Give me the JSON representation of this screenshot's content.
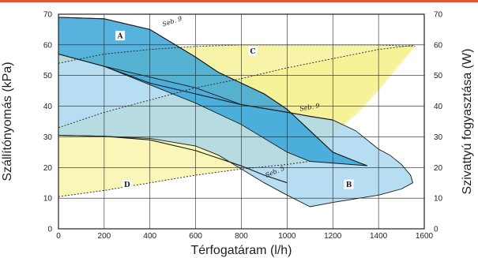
{
  "chart_data": {
    "type": "area",
    "xlabel": "Térfogatáram (l/h)",
    "ylabel": "Szállítónyomás (kPa)",
    "y2label": "Szivattyú fogyasztása (W)",
    "xlim": [
      0,
      1600
    ],
    "ylim": [
      0,
      70
    ],
    "y2lim": [
      0,
      70
    ],
    "x_ticks": [
      "0",
      "200",
      "400",
      "600",
      "800",
      "1000",
      "1200",
      "1400",
      "1600"
    ],
    "y_ticks": [
      "0",
      "10",
      "20",
      "30",
      "40",
      "50",
      "60",
      "70"
    ],
    "y2_ticks": [
      "0",
      "10",
      "20",
      "30",
      "40",
      "50",
      "60",
      "70"
    ],
    "grid": true,
    "colors": {
      "A": "#3aa6d8",
      "B": "#9fd2ee",
      "C": "#f4f08c",
      "D": "#f7f3a0",
      "frame": "#222222",
      "accent_bar": "#e8542e"
    },
    "regions": [
      {
        "name": "A",
        "x": [
          0,
          200,
          400,
          600,
          700,
          800,
          900,
          1000,
          1100,
          1200,
          1300,
          1350,
          1100,
          1000,
          800,
          600,
          400,
          200,
          0
        ],
        "y": [
          69,
          68.5,
          65,
          56,
          51,
          47.5,
          44,
          39,
          32,
          25,
          22,
          20.6,
          22,
          25,
          34,
          41,
          47,
          53,
          57
        ]
      },
      {
        "name": "B",
        "x": [
          0,
          200,
          600,
          800,
          1000,
          1100,
          1200,
          1300,
          1400,
          1450,
          1500,
          1540,
          1550,
          1500,
          1400,
          1300,
          1200,
          1100,
          1000,
          900,
          800,
          700,
          600,
          400,
          200,
          0
        ],
        "y": [
          57,
          53,
          46,
          40.5,
          38,
          36.7,
          35.5,
          32,
          26,
          24,
          21,
          17.5,
          15,
          13,
          11,
          9.8,
          8.6,
          7.2,
          11,
          15,
          19.5,
          24,
          27,
          29.5,
          30.2,
          30.5
        ]
      },
      {
        "name": "C",
        "x": [
          0,
          200,
          400,
          600,
          800,
          1000,
          1200,
          1400,
          1560,
          1400,
          1300,
          1250,
          1000,
          800,
          600,
          400,
          200,
          0
        ],
        "y": [
          54,
          57,
          58.5,
          59.5,
          60,
          60,
          60,
          60,
          59.5,
          45,
          37,
          34,
          37.5,
          41,
          45,
          49,
          53,
          57
        ]
      },
      {
        "name": "D",
        "x": [
          0,
          200,
          400,
          600,
          700,
          800,
          900,
          1000,
          1100,
          1200,
          1300,
          1400,
          1500,
          1560,
          1100,
          1000,
          800,
          600,
          400,
          200,
          0
        ],
        "y": [
          33,
          38,
          42,
          46,
          47.5,
          49,
          51,
          52.5,
          54,
          55.5,
          57,
          58.5,
          59.5,
          60,
          22,
          21,
          19.5,
          17.5,
          15,
          12.5,
          10.5
        ]
      }
    ],
    "curves": [
      {
        "name": "Seb. 9",
        "x": [
          0,
          200,
          400,
          600,
          700,
          800,
          900,
          1000,
          1100,
          1200,
          1300,
          1350
        ],
        "y": [
          69,
          68.5,
          65,
          56,
          51,
          47.5,
          44,
          39,
          32,
          25,
          22,
          20.6
        ]
      },
      {
        "name": "Seb. 9",
        "x": [
          0,
          200,
          400,
          600,
          800,
          1000,
          1100,
          1200
        ],
        "y": [
          57,
          53,
          47.5,
          44,
          40.5,
          38,
          36.7,
          35.5
        ]
      },
      {
        "name": "Seb. 5",
        "x": [
          0,
          200,
          400,
          600,
          700,
          800,
          900,
          1000
        ],
        "y": [
          30.5,
          30.2,
          29,
          25.5,
          23,
          20.5,
          17.5,
          15
        ]
      }
    ],
    "dashed_curves": [
      {
        "x": [
          0,
          200,
          400,
          600,
          800,
          1000,
          1200,
          1400,
          1560
        ],
        "y": [
          54,
          57,
          58.5,
          59.5,
          60,
          60,
          60,
          60,
          59.5
        ]
      },
      {
        "x": [
          0,
          200,
          400,
          600,
          800,
          1000,
          1200,
          1400,
          1560
        ],
        "y": [
          33,
          38,
          42,
          46,
          49,
          52.5,
          55.5,
          58.5,
          60
        ]
      },
      {
        "x": [
          0,
          200,
          400,
          600,
          800,
          1000,
          1100
        ],
        "y": [
          10.5,
          12.5,
          15,
          17.5,
          19.5,
          21,
          22
        ]
      }
    ],
    "region_labels": [
      {
        "text": "A",
        "x": 270,
        "y": 63
      },
      {
        "text": "B",
        "x": 1270,
        "y": 14.5
      },
      {
        "text": "C",
        "x": 850,
        "y": 58
      },
      {
        "text": "D",
        "x": 300,
        "y": 14.5
      }
    ],
    "curve_labels": [
      {
        "text": "Seb. 9",
        "x": 500,
        "y": 67,
        "angle": -18
      },
      {
        "text": "Seb. 9",
        "x": 1100,
        "y": 39,
        "angle": -10
      },
      {
        "text": "Seb. 5",
        "x": 950,
        "y": 18,
        "angle": -22
      }
    ]
  }
}
